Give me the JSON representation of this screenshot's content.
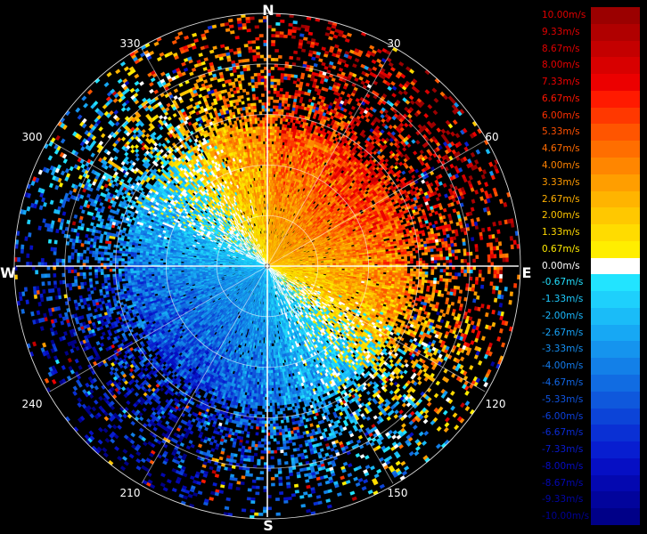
{
  "radar": {
    "cardinals": {
      "north": "N",
      "east": "E",
      "south": "S",
      "west": "W"
    },
    "azimuth_labels": [
      {
        "deg": 30,
        "label": "30"
      },
      {
        "deg": 60,
        "label": "60"
      },
      {
        "deg": 120,
        "label": "120"
      },
      {
        "deg": 150,
        "label": "150"
      },
      {
        "deg": 210,
        "label": "210"
      },
      {
        "deg": 240,
        "label": "240"
      },
      {
        "deg": 300,
        "label": "300"
      },
      {
        "deg": 330,
        "label": "330"
      }
    ],
    "range_ring_count": 5,
    "radial_spoke_degrees": [
      0,
      30,
      60,
      90,
      120,
      150,
      180,
      210,
      240,
      270,
      300,
      330
    ],
    "velocity_pattern": {
      "outbound_center_azimuth_deg": 45,
      "inbound_center_azimuth_deg": 225,
      "max_speed_ms": 10
    }
  },
  "legend": {
    "items": [
      {
        "label": "10.00m/s",
        "color": "#9b0000",
        "label_color": "#e00000"
      },
      {
        "label": "9.33m/s",
        "color": "#b00000",
        "label_color": "#e00000"
      },
      {
        "label": "8.67m/s",
        "color": "#c40000",
        "label_color": "#e00000"
      },
      {
        "label": "8.00m/s",
        "color": "#d80000",
        "label_color": "#e60000"
      },
      {
        "label": "7.33m/s",
        "color": "#ec0000",
        "label_color": "#f00000"
      },
      {
        "label": "6.67m/s",
        "color": "#ff1a00",
        "label_color": "#ff1500"
      },
      {
        "label": "6.00m/s",
        "color": "#ff3800",
        "label_color": "#ff3000"
      },
      {
        "label": "5.33m/s",
        "color": "#ff5500",
        "label_color": "#ff5000"
      },
      {
        "label": "4.67m/s",
        "color": "#ff6e00",
        "label_color": "#ff6a00"
      },
      {
        "label": "4.00m/s",
        "color": "#ff8600",
        "label_color": "#ff8200"
      },
      {
        "label": "3.33m/s",
        "color": "#ff9e00",
        "label_color": "#ff9a00"
      },
      {
        "label": "2.67m/s",
        "color": "#ffb400",
        "label_color": "#ffb000"
      },
      {
        "label": "2.00m/s",
        "color": "#ffc800",
        "label_color": "#ffc400"
      },
      {
        "label": "1.33m/s",
        "color": "#ffdc00",
        "label_color": "#ffd800"
      },
      {
        "label": "0.67m/s",
        "color": "#ffee00",
        "label_color": "#ffea00"
      },
      {
        "label": "0.00m/s",
        "color": "#ffffff",
        "label_color": "#ffffff"
      },
      {
        "label": "-0.67m/s",
        "color": "#22e4ff",
        "label_color": "#22e0ff"
      },
      {
        "label": "-1.33m/s",
        "color": "#1ed0fc",
        "label_color": "#1ecbff"
      },
      {
        "label": "-2.00m/s",
        "color": "#1abcf8",
        "label_color": "#1ab8ff"
      },
      {
        "label": "-2.67m/s",
        "color": "#17a8f4",
        "label_color": "#17a4fa"
      },
      {
        "label": "-3.33m/s",
        "color": "#1594ee",
        "label_color": "#1590f4"
      },
      {
        "label": "-4.00m/s",
        "color": "#1380e8",
        "label_color": "#137cee"
      },
      {
        "label": "-4.67m/s",
        "color": "#116ce2",
        "label_color": "#1168e8"
      },
      {
        "label": "-5.33m/s",
        "color": "#0f58dc",
        "label_color": "#0f54e2"
      },
      {
        "label": "-6.00m/s",
        "color": "#0c44d8",
        "label_color": "#0c40dc"
      },
      {
        "label": "-6.67m/s",
        "color": "#0a30d4",
        "label_color": "#0a2cd6"
      },
      {
        "label": "-7.33m/s",
        "color": "#081ed0",
        "label_color": "#081ad0"
      },
      {
        "label": "-8.00m/s",
        "color": "#060fc4",
        "label_color": "#060cc4"
      },
      {
        "label": "-8.67m/s",
        "color": "#0408b0",
        "label_color": "#0408b4"
      },
      {
        "label": "-9.33m/s",
        "color": "#02049c",
        "label_color": "#0206a4"
      },
      {
        "label": "-10.00m/s",
        "color": "#000088",
        "label_color": "#000094"
      }
    ]
  }
}
